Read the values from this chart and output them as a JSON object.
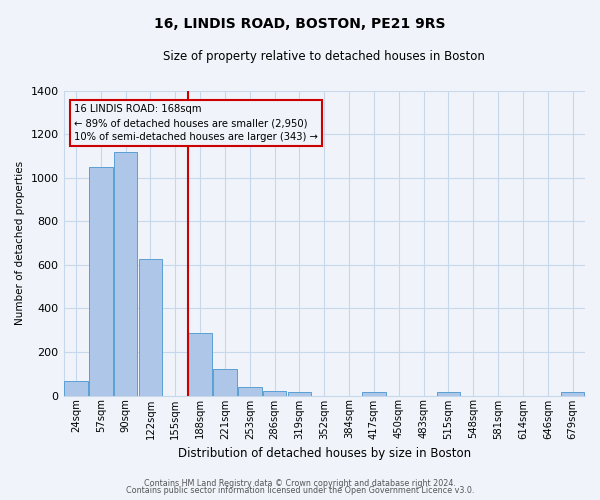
{
  "title": "16, LINDIS ROAD, BOSTON, PE21 9RS",
  "subtitle": "Size of property relative to detached houses in Boston",
  "xlabel": "Distribution of detached houses by size in Boston",
  "ylabel": "Number of detached properties",
  "categories": [
    "24sqm",
    "57sqm",
    "90sqm",
    "122sqm",
    "155sqm",
    "188sqm",
    "221sqm",
    "253sqm",
    "286sqm",
    "319sqm",
    "352sqm",
    "384sqm",
    "417sqm",
    "450sqm",
    "483sqm",
    "515sqm",
    "548sqm",
    "581sqm",
    "614sqm",
    "646sqm",
    "679sqm"
  ],
  "bar_values": [
    65,
    1050,
    1120,
    625,
    0,
    285,
    120,
    40,
    20,
    15,
    0,
    0,
    15,
    0,
    0,
    15,
    0,
    0,
    0,
    0,
    15
  ],
  "bar_color": "#aec6e8",
  "bar_edge_color": "#5a9fd4",
  "vline_color": "#cc0000",
  "annotation_title": "16 LINDIS ROAD: 168sqm",
  "annotation_line1": "← 89% of detached houses are smaller (2,950)",
  "annotation_line2": "10% of semi-detached houses are larger (343) →",
  "annotation_box_color": "#cc0000",
  "ylim": [
    0,
    1400
  ],
  "yticks": [
    0,
    200,
    400,
    600,
    800,
    1000,
    1200,
    1400
  ],
  "bg_color": "#f0f4fa",
  "grid_color": "#c8d8ec",
  "footer1": "Contains HM Land Registry data © Crown copyright and database right 2024.",
  "footer2": "Contains public sector information licensed under the Open Government Licence v3.0."
}
